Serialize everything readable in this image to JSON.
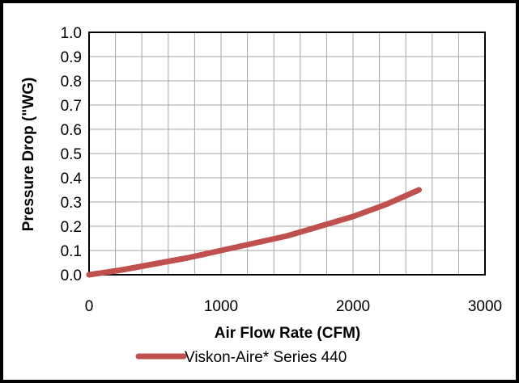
{
  "chart_data": {
    "type": "line",
    "title": "",
    "xlabel": "Air Flow Rate (CFM)",
    "ylabel": "Pressure Drop (\"WG)",
    "xlim": [
      0,
      3000
    ],
    "ylim": [
      0,
      1.0
    ],
    "x_ticks": [
      "0",
      "1000",
      "2000",
      "3000"
    ],
    "x_tick_values": [
      0,
      1000,
      2000,
      3000
    ],
    "y_ticks": [
      "0.0",
      "0.1",
      "0.2",
      "0.3",
      "0.4",
      "0.5",
      "0.6",
      "0.7",
      "0.8",
      "0.9",
      "1.0"
    ],
    "y_tick_values": [
      0,
      0.1,
      0.2,
      0.3,
      0.4,
      0.5,
      0.6,
      0.7,
      0.8,
      0.9,
      1.0
    ],
    "x_minor_step": 200,
    "grid": true,
    "legend_position": "bottom",
    "series": [
      {
        "name": "Viskon-Aire* Series 440",
        "color": "#c0504d",
        "x": [
          0,
          250,
          500,
          750,
          1000,
          1250,
          1500,
          1750,
          2000,
          2250,
          2500
        ],
        "y": [
          0.0,
          0.02,
          0.045,
          0.07,
          0.1,
          0.13,
          0.16,
          0.2,
          0.24,
          0.29,
          0.35
        ]
      }
    ]
  }
}
